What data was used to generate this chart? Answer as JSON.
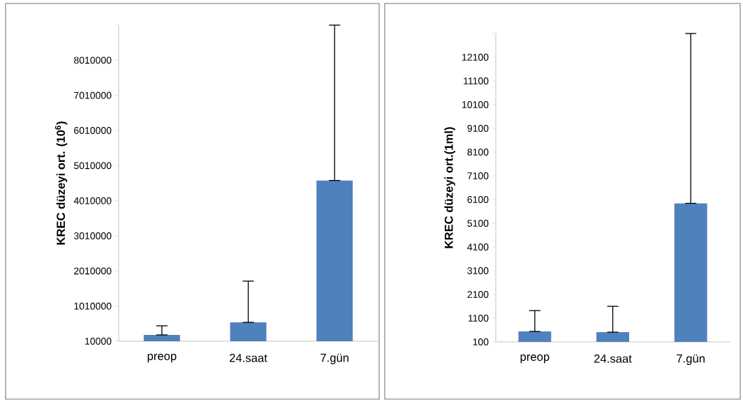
{
  "chart_data": [
    {
      "type": "bar",
      "ylabel": "KREC düzeyi ort. (10$^{6}$)",
      "categories": [
        "preop",
        "24.saat",
        "7.gün"
      ],
      "values": [
        189000,
        547000,
        4587000
      ],
      "errors": [
        [
          189000,
          448000
        ],
        [
          547000,
          1721000
        ],
        [
          4587000,
          9010000
        ]
      ],
      "color": "#4f81bd",
      "ylim": [
        10000,
        9010000
      ],
      "yticks": [
        10000,
        1010000,
        2010000,
        3010000,
        4010000,
        5010000,
        6010000,
        7010000,
        8010000,
        {
          "value": 9010000,
          "label": null
        }
      ],
      "grid": false
    },
    {
      "type": "bar",
      "ylabel": "KREC düzeyi ort.(1ml)",
      "categories": [
        "preop",
        "24.saat",
        "7.gün"
      ],
      "values": [
        540,
        510,
        5940
      ],
      "errors": [
        [
          540,
          1420
        ],
        [
          510,
          1600
        ],
        [
          5940,
          13100
        ]
      ],
      "color": "#4f81bd",
      "ylim": [
        100,
        13100
      ],
      "yticks": [
        100,
        1100,
        2100,
        3100,
        4100,
        5100,
        6100,
        7100,
        8100,
        9100,
        10100,
        11100,
        12100,
        {
          "value": 13100,
          "label": null
        }
      ],
      "grid": false
    }
  ]
}
